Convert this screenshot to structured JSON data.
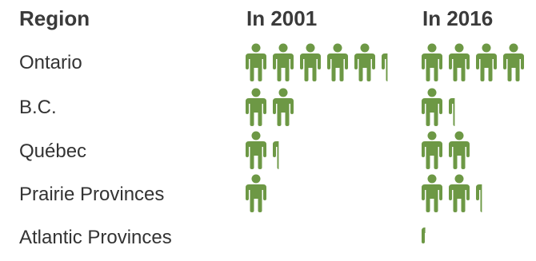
{
  "chart_data": {
    "type": "pictogram",
    "columns": [
      "Region",
      "In 2001",
      "In 2016"
    ],
    "accent_color": "#6d9845",
    "icon": "person-icon",
    "rows": [
      {
        "region": "Ontario",
        "in_2001": 5.3,
        "in_2016": 4.0
      },
      {
        "region": "B.C.",
        "in_2001": 2.0,
        "in_2016": 1.3
      },
      {
        "region": "Québec",
        "in_2001": 1.3,
        "in_2016": 2.0
      },
      {
        "region": "Prairie Provinces",
        "in_2001": 1.0,
        "in_2016": 2.3
      },
      {
        "region": "Atlantic Provinces",
        "in_2001": 0,
        "in_2016": 0.2
      }
    ]
  }
}
